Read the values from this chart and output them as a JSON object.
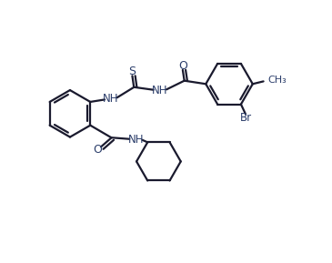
{
  "bg_color": "#ffffff",
  "line_color": "#1a1a2e",
  "text_color": "#2c3e6b",
  "line_width": 1.6,
  "font_size": 8.5,
  "figsize": [
    3.65,
    2.89
  ],
  "dpi": 100,
  "xlim": [
    0,
    10
  ],
  "ylim": [
    0,
    8
  ]
}
